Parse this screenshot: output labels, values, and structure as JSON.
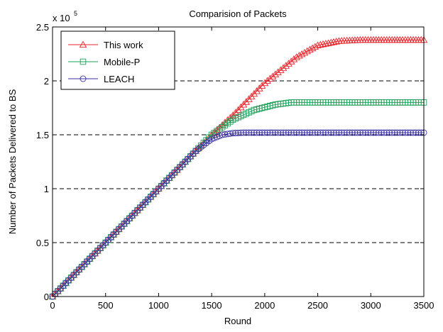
{
  "chart_data": {
    "type": "line",
    "title": "Comparision of Packets",
    "xlabel": "Round",
    "ylabel": "Number of Packets Delivered to BS",
    "y_multiplier_label": "x 10",
    "y_multiplier_exponent": "5",
    "xlim": [
      0,
      3500
    ],
    "ylim": [
      0,
      2.5
    ],
    "x_ticks": [
      0,
      500,
      1000,
      1500,
      2000,
      2500,
      3000,
      3500
    ],
    "x_tick_labels": [
      "0",
      "500",
      "1000",
      "1500",
      "2000",
      "2500",
      "3000",
      "3500"
    ],
    "y_ticks": [
      0,
      0.5,
      1,
      1.5,
      2,
      2.5
    ],
    "y_tick_labels": [
      "0",
      "0.5",
      "1",
      "1.5",
      "2",
      "2.5"
    ],
    "grid": "horizontal-dashed",
    "legend_position": "top-left",
    "series": [
      {
        "name": "This work",
        "color": "#e8252b",
        "marker": "triangle",
        "x": [
          0,
          500,
          1000,
          1500,
          1700,
          2000,
          2300,
          2500,
          2700,
          2900,
          3500
        ],
        "y": [
          0,
          0.5,
          1.0,
          1.5,
          1.68,
          1.98,
          2.22,
          2.33,
          2.37,
          2.38,
          2.38
        ]
      },
      {
        "name": "Mobile-P",
        "color": "#1ea15a",
        "marker": "square",
        "x": [
          0,
          500,
          1000,
          1500,
          1700,
          1900,
          2100,
          2250,
          2400,
          3500
        ],
        "y": [
          0,
          0.5,
          1.0,
          1.5,
          1.64,
          1.73,
          1.78,
          1.8,
          1.8,
          1.8
        ]
      },
      {
        "name": "LEACH",
        "color": "#3a2fa3",
        "marker": "circle",
        "x": [
          0,
          500,
          1000,
          1350,
          1500,
          1600,
          1700,
          1800,
          1900,
          3500
        ],
        "y": [
          0,
          0.5,
          1.0,
          1.35,
          1.46,
          1.5,
          1.515,
          1.52,
          1.52,
          1.52
        ]
      }
    ]
  }
}
